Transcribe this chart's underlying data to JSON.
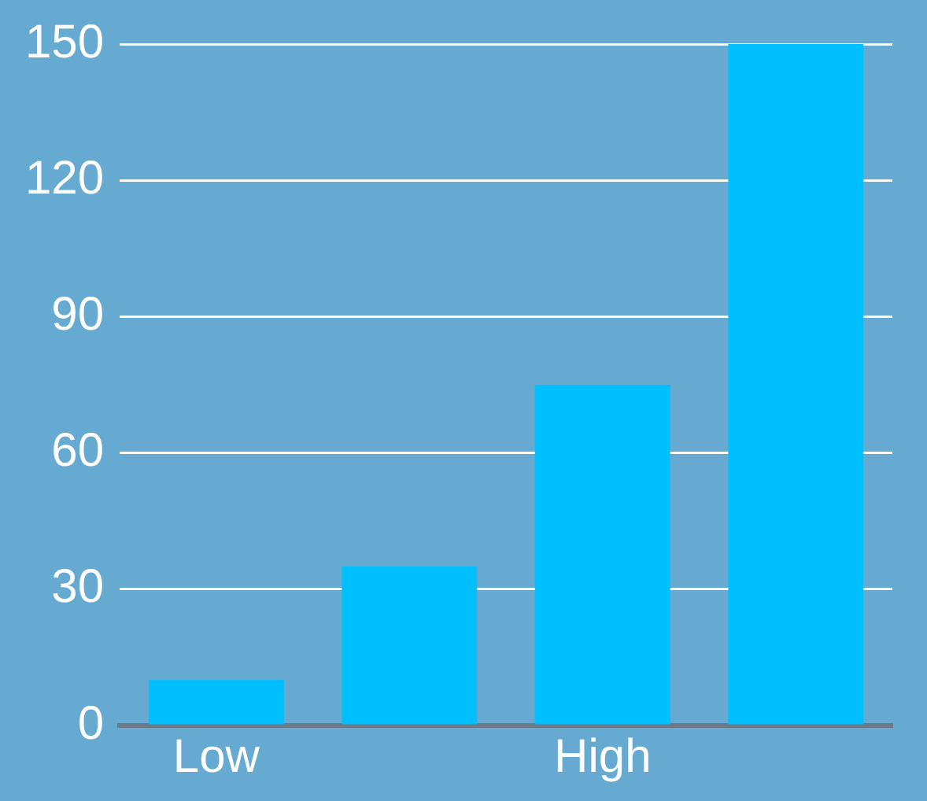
{
  "chart_data": {
    "type": "bar",
    "categories": [
      "Low",
      null,
      "High",
      null
    ],
    "values": [
      10,
      35,
      75,
      150
    ],
    "color": "#00bfff",
    "ylim": [
      0,
      150
    ],
    "yticks": [
      0,
      30,
      60,
      90,
      120,
      150
    ],
    "grid": "y",
    "legend": false
  }
}
